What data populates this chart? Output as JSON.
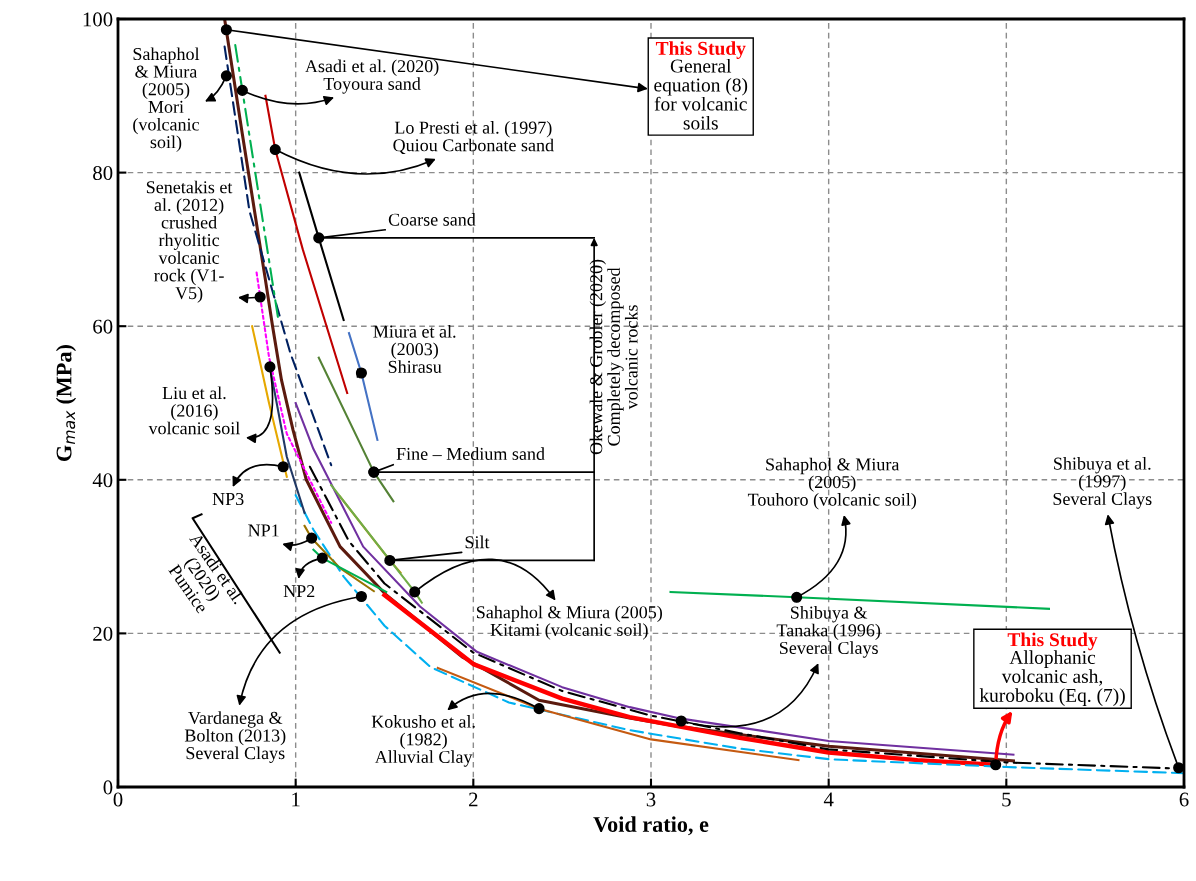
{
  "chart_data": {
    "type": "line",
    "xlabel": "Void ratio, e",
    "ylabel": "G$_{max}$ (MPa)",
    "xlim": [
      0,
      6
    ],
    "xticks": [
      0,
      1,
      2,
      3,
      4,
      5,
      6
    ],
    "ylim": [
      0,
      100
    ],
    "yticks": [
      0,
      20,
      40,
      60,
      80,
      100
    ],
    "grid": true,
    "legend": false,
    "series": [
      {
        "color": "#5b1a0e",
        "line_style": "solid",
        "x": [
          0.6,
          0.7,
          0.83,
          0.87,
          0.92,
          0.985,
          1.06,
          1.25,
          1.51,
          1.94,
          2.37,
          2.88,
          3.15,
          4.0,
          5.04
        ],
        "values": [
          100,
          85,
          66,
          60,
          53,
          46.5,
          40,
          31.3,
          25,
          16.9,
          11.3,
          9,
          7.9,
          5.3,
          3.4
        ]
      },
      {
        "color": "#ff0000",
        "line_style": "solid",
        "x": [
          1.5,
          2.0,
          2.5,
          2.88,
          3.5,
          4.0,
          4.5,
          4.94
        ],
        "values": [
          25,
          16,
          11.5,
          9.1,
          6.4,
          4.5,
          3.5,
          2.9
        ]
      },
      {
        "color": "#000000",
        "line_style": "dashdot",
        "x": [
          1.08,
          1.3,
          1.5,
          2.0,
          2.5,
          3.0,
          3.5,
          4.0,
          5.0,
          5.97
        ],
        "values": [
          41.7,
          32,
          26.5,
          17.5,
          12.5,
          9.3,
          7.0,
          4.9,
          3.2,
          2.4
        ]
      },
      {
        "color": "#00b0f0",
        "line_style": "dashed",
        "x": [
          1.0,
          1.1,
          1.27,
          1.5,
          1.76,
          2.2,
          2.88,
          3.5,
          4.01,
          5.0,
          6.0
        ],
        "values": [
          38,
          33.5,
          27.4,
          21,
          15.6,
          11,
          7.4,
          5,
          3.6,
          2.6,
          1.8
        ]
      },
      {
        "color": "#7030a0",
        "line_style": "solid",
        "x": [
          1.0,
          1.1,
          1.38,
          1.7,
          2.02,
          2.5,
          2.88,
          3.17,
          4.0,
          5.04
        ],
        "values": [
          50,
          44,
          31.3,
          23.5,
          17.6,
          13,
          10.4,
          8.9,
          6,
          4.2
        ]
      },
      {
        "color": "#c55a11",
        "line_style": "solid",
        "x": [
          1.8,
          2.37,
          3.0,
          3.83
        ],
        "values": [
          15.5,
          10.2,
          6.2,
          3.5
        ]
      },
      {
        "color": "#00b050",
        "line_style": "solid",
        "x": [
          3.11,
          3.82,
          5.24
        ],
        "values": [
          25.4,
          24.7,
          23.2
        ]
      },
      {
        "color": "#000000",
        "line_style": "solid",
        "x": [
          1.02,
          1.13,
          1.27
        ],
        "values": [
          80,
          71.5,
          60.8
        ]
      },
      {
        "color": "#c00000",
        "line_style": "solid",
        "x": [
          0.83,
          0.885,
          1.04,
          1.29
        ],
        "values": [
          90,
          83,
          70,
          51.3
        ]
      },
      {
        "color": "#4472c4",
        "line_style": "solid",
        "x": [
          1.3,
          1.37,
          1.46
        ],
        "values": [
          59.1,
          53.9,
          45.2
        ]
      },
      {
        "color": "#548235",
        "line_style": "solid",
        "x": [
          1.13,
          1.44,
          1.55
        ],
        "values": [
          55.9,
          41,
          37.2
        ]
      },
      {
        "color": "#bf9000",
        "line_style": "solid",
        "x": [
          1.25,
          1.53,
          1.59
        ],
        "values": [
          37.8,
          29.5,
          27.9
        ]
      },
      {
        "color": "#70ad47",
        "line_style": "solid",
        "x": [
          1.2,
          1.67,
          1.71
        ],
        "values": [
          39.3,
          25.4,
          24
        ]
      },
      {
        "color": "#997300",
        "line_style": "solid",
        "x": [
          1.05,
          1.09,
          1.25,
          1.44
        ],
        "values": [
          34,
          32.4,
          28.5,
          25.5
        ]
      },
      {
        "color": "#00b050",
        "line_style": "solid",
        "x": [
          1.1,
          1.15,
          1.51
        ],
        "values": [
          30.9,
          29.8,
          25.4
        ]
      },
      {
        "color": "#203864",
        "line_style": "solid",
        "x": [
          0.855,
          0.95,
          1.05
        ],
        "values": [
          54.7,
          43,
          35.7
        ]
      },
      {
        "color": "#ff00ff",
        "line_style": "dotted",
        "x": [
          0.78,
          0.85,
          0.95,
          1.2
        ],
        "values": [
          67,
          56,
          46,
          34.4
        ]
      },
      {
        "color": "#002060",
        "line_style": "dashed",
        "x": [
          0.6,
          0.74,
          0.97,
          1.2
        ],
        "values": [
          96.4,
          75,
          56.5,
          41.9
        ]
      },
      {
        "color": "#00b050",
        "line_style": "dashdot",
        "x": [
          0.66,
          0.7,
          0.9
        ],
        "values": [
          96.6,
          90.7,
          61.2
        ]
      },
      {
        "color": "#e6a800",
        "line_style": "solid",
        "x": [
          0.755,
          0.85,
          0.95
        ],
        "values": [
          60,
          50,
          40.4
        ]
      }
    ],
    "annotations": [
      {
        "text": "Sahaphol\n& Miura\n(2005)\nMori\n(volcanic\nsoil)",
        "x": 0.61,
        "y": 92.6
      },
      {
        "text": "This Study\nGeneral\nequation (8)\nfor volcanic\nsoils",
        "x": 0.61,
        "y": 98.6
      },
      {
        "text": "Asadi et al. (2020)\nToyoura sand",
        "x": 0.7,
        "y": 90.7
      },
      {
        "text": "Lo Presti et al. (1997)\nQuiou Carbonate sand",
        "x": 0.885,
        "y": 83
      },
      {
        "text": "Coarse sand",
        "x": 1.13,
        "y": 71.5
      },
      {
        "text": "Okewale & Grobler (2020)\nCompletely decomposed\nvolcanic rocks",
        "x": 1.44,
        "y": 41
      },
      {
        "text": "Miura et al.\n(2003)\nShirasu",
        "x": 1.37,
        "y": 53.9
      },
      {
        "text": "Fine – Medium sand",
        "x": 1.44,
        "y": 41
      },
      {
        "text": "Silt",
        "x": 1.53,
        "y": 29.5
      },
      {
        "text": "Senetakis et\nal. (2012)\ncrushed\nrhyolitic\nvolcanic\nrock (V1-\nV5)",
        "x": 0.8,
        "y": 63.8
      },
      {
        "text": "Liu et al.\n(2016)\nvolcanic soil",
        "x": 0.855,
        "y": 54.7
      },
      {
        "text": "NP3",
        "x": 0.93,
        "y": 41.7
      },
      {
        "text": "NP1",
        "x": 1.09,
        "y": 32.4
      },
      {
        "text": "NP2",
        "x": 1.15,
        "y": 29.8
      },
      "Asadi et al.\n(2020)\nPumice",
      {
        "text": "Vardanega &\nBolton (2013)\nSeveral Clays",
        "x": 1.37,
        "y": 24.8
      },
      {
        "text": "Kokusho et al.\n(1982)\nAlluvial Clay",
        "x": 2.37,
        "y": 10.2
      },
      {
        "text": "Sahaphol & Miura (2005)\nKitami (volcanic soil)",
        "x": 1.67,
        "y": 25.4
      },
      {
        "text": "Sahaphol & Miura\n(2005)\nTouhoro (volcanic soil)",
        "x": 3.82,
        "y": 24.7
      },
      {
        "text": "Shibuya &\nTanaka (1996)\nSeveral Clays",
        "x": 3.17,
        "y": 8.6
      },
      {
        "text": "Shibuya et al.\n(1997)\nSeveral Clays",
        "x": 5.97,
        "y": 2.5
      },
      {
        "text": "This Study\nAllophanic\nvolcanic ash,\nkuroboku (Eq. (7))",
        "x": 4.94,
        "y": 2.9
      }
    ]
  }
}
